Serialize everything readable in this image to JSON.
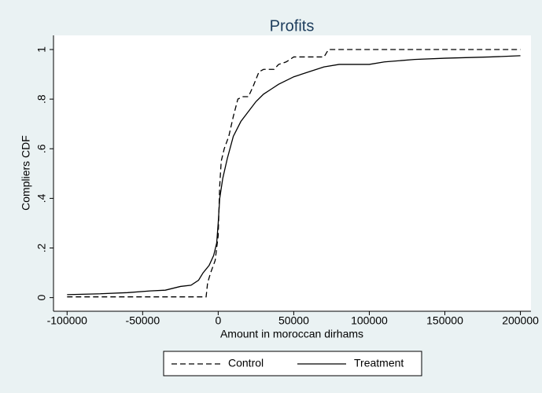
{
  "chart_data": {
    "type": "line",
    "title": "Profits",
    "x_label": "Amount in moroccan dirhams",
    "y_label": "Compliers CDF",
    "xlim": [
      -109000,
      207000
    ],
    "ylim": [
      -0.055,
      1.057
    ],
    "xticks": [
      -100000,
      -50000,
      0,
      50000,
      100000,
      150000,
      200000
    ],
    "yticks": [
      0,
      {
        "value": 0.2,
        "label": ".2"
      },
      {
        "value": 0.4,
        "label": ".4"
      },
      {
        "value": 0.6,
        "label": ".6"
      },
      {
        "value": 0.8,
        "label": ".8"
      },
      1
    ],
    "grid": false,
    "legend": "bottom",
    "series": [
      {
        "name": "Control",
        "color": "#000000",
        "dash": "dashed",
        "x": [
          -100000,
          -8000,
          -7000,
          -5000,
          -2000,
          0,
          1000,
          2000,
          4000,
          7000,
          10000,
          13000,
          16000,
          20000,
          23000,
          27000,
          30000,
          37000,
          40000,
          45000,
          50000,
          70000,
          73000,
          200000
        ],
        "values": [
          0.003,
          0.003,
          0.06,
          0.1,
          0.15,
          0.25,
          0.45,
          0.55,
          0.6,
          0.65,
          0.73,
          0.8,
          0.81,
          0.81,
          0.85,
          0.91,
          0.92,
          0.92,
          0.94,
          0.95,
          0.97,
          0.97,
          1.0,
          1.0
        ]
      },
      {
        "name": "Treatment",
        "color": "#000000",
        "dash": "solid",
        "x": [
          -100000,
          -80000,
          -60000,
          -45000,
          -35000,
          -25000,
          -18000,
          -13000,
          -10000,
          -6000,
          -3000,
          -1000,
          0,
          1000,
          3000,
          6000,
          10000,
          15000,
          20000,
          25000,
          30000,
          35000,
          40000,
          50000,
          60000,
          70000,
          80000,
          100000,
          110000,
          130000,
          150000,
          180000,
          200000
        ],
        "values": [
          0.012,
          0.015,
          0.02,
          0.027,
          0.03,
          0.045,
          0.05,
          0.07,
          0.1,
          0.13,
          0.17,
          0.22,
          0.3,
          0.4,
          0.48,
          0.56,
          0.65,
          0.71,
          0.75,
          0.79,
          0.82,
          0.84,
          0.86,
          0.89,
          0.91,
          0.93,
          0.94,
          0.94,
          0.95,
          0.96,
          0.965,
          0.97,
          0.975
        ]
      }
    ]
  }
}
